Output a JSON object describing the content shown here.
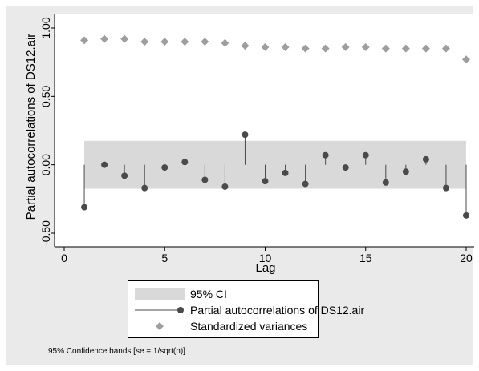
{
  "chart_data": {
    "type": "line",
    "title": "",
    "xlabel": "Lag",
    "ylabel": "Partial autocorrelations of DS12.air",
    "xlim": [
      0,
      20
    ],
    "ylim": [
      -0.5,
      1.0
    ],
    "xticks": [
      "0",
      "5",
      "10",
      "15",
      "20"
    ],
    "yticks": [
      "-0.50",
      "0.00",
      "0.50",
      "1.00"
    ],
    "x": [
      1,
      2,
      3,
      4,
      5,
      6,
      7,
      8,
      9,
      10,
      11,
      12,
      13,
      14,
      15,
      16,
      17,
      18,
      19,
      20
    ],
    "confidence_band": {
      "lower": -0.175,
      "upper": 0.175,
      "color": "#d9d9d9"
    },
    "series": [
      {
        "name": "Partial autocorrelations of DS12.air",
        "style": "spike",
        "color": "#4a4a4a",
        "values": [
          -0.31,
          0.0,
          -0.08,
          -0.17,
          -0.02,
          0.02,
          -0.11,
          -0.16,
          0.22,
          -0.12,
          -0.06,
          -0.14,
          0.07,
          -0.02,
          0.07,
          -0.13,
          -0.05,
          0.04,
          -0.17,
          -0.37
        ]
      },
      {
        "name": "Standardized variances",
        "style": "diamond",
        "color": "#9e9e9e",
        "values": [
          0.91,
          0.92,
          0.92,
          0.9,
          0.9,
          0.9,
          0.9,
          0.89,
          0.87,
          0.86,
          0.86,
          0.85,
          0.85,
          0.86,
          0.86,
          0.85,
          0.85,
          0.85,
          0.85,
          0.77
        ]
      }
    ],
    "legend": {
      "placement": "bottom",
      "entries": [
        "95% CI",
        "Partial autocorrelations of DS12.air",
        "Standardized variances"
      ]
    },
    "note": "95% Confidence bands [se = 1/sqrt(n)]",
    "grid": false,
    "background_color": "#eaeaea"
  }
}
